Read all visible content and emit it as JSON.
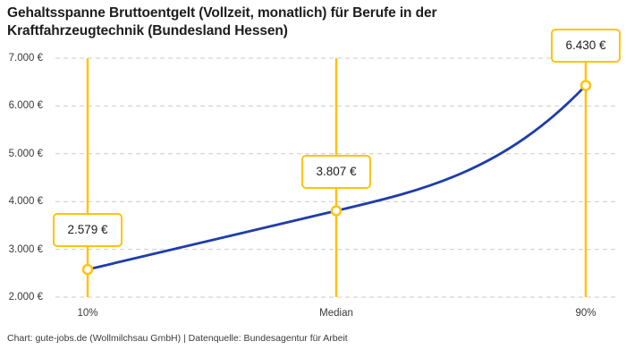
{
  "title": "Gehaltsspanne Bruttoentgelt (Vollzeit, monatlich) für Berufe in der Kraftfahrzeugtechnik (Bundesland Hessen)",
  "attribution": "Chart: gute-jobs.de (Wollmilchsau GmbH) | Datenquelle: Bundesagentur für Arbeit",
  "chart_data": {
    "type": "line",
    "title": "Gehaltsspanne Bruttoentgelt (Vollzeit, monatlich) für Berufe in der Kraftfahrzeugtechnik (Bundesland Hessen)",
    "categories": [
      "10%",
      "Median",
      "90%"
    ],
    "values": [
      2579,
      3807,
      6430
    ],
    "point_labels": [
      "2.579 €",
      "3.807 €",
      "6.430 €"
    ],
    "y_ticks": [
      2000,
      3000,
      4000,
      5000,
      6000,
      7000
    ],
    "y_tick_labels": [
      "2.000 €",
      "3.000 €",
      "4.000 €",
      "5.000 €",
      "6.000 €",
      "7.000 €"
    ],
    "ylim": [
      2000,
      7000
    ],
    "xlabel": "",
    "ylabel": "",
    "grid": "horizontal-dashed",
    "legend": "none",
    "colors": {
      "line": "#1e3cad",
      "marker_fill": "#ffffff",
      "marker_stroke": "#ffc30b",
      "percentile_line": "#ffc30b",
      "label_border": "#ffc30b",
      "grid": "#cccccc"
    }
  }
}
